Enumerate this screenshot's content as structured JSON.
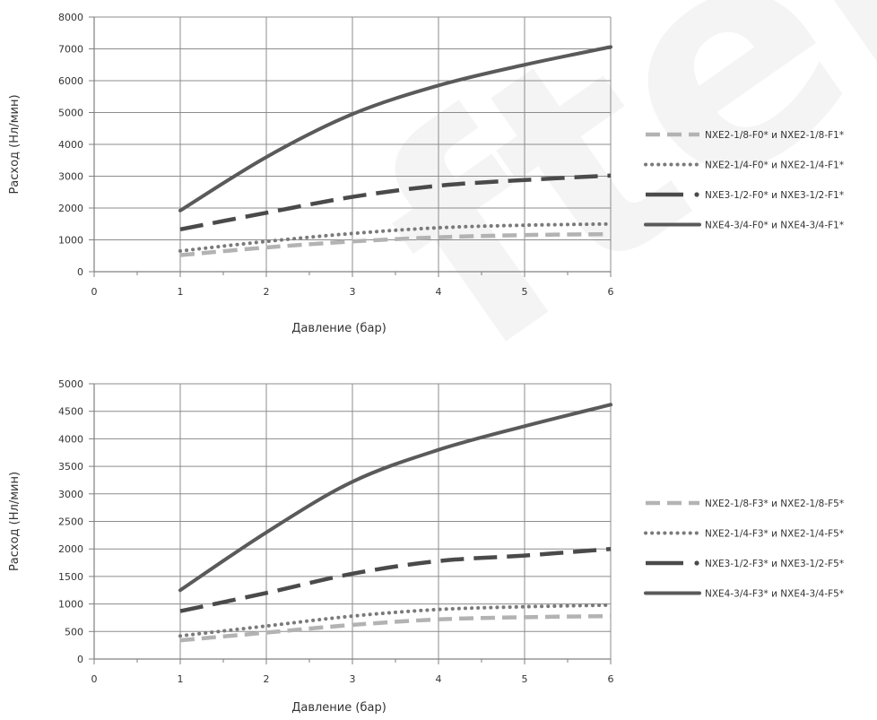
{
  "watermark": "fter.ru",
  "colors": {
    "axis": "#808080",
    "grid": "#8c8c8c",
    "text": "#333333"
  },
  "chart_data": [
    {
      "type": "line",
      "xlabel": "Давление (бар)",
      "ylabel": "Расход (Нл/мин)",
      "xlim": [
        0,
        6
      ],
      "ylim": [
        0,
        8000
      ],
      "xticks": [
        "0",
        "1",
        "2",
        "3",
        "4",
        "5",
        "6"
      ],
      "yticks": [
        "0",
        "1000",
        "2000",
        "3000",
        "4000",
        "5000",
        "6000",
        "7000",
        "8000"
      ],
      "grid": true,
      "legend_position": "right",
      "series": [
        {
          "name": "NXE2-1/8-F0* и NXE2-1/8-F1*",
          "style": "dashed-light",
          "color": "#b3b3b3",
          "x": [
            1,
            2,
            3,
            4,
            5,
            6
          ],
          "y": [
            520,
            760,
            950,
            1080,
            1150,
            1180
          ]
        },
        {
          "name": "NXE2-1/4-F0* и NXE2-1/4-F1*",
          "style": "dotted",
          "color": "#7a7a7a",
          "x": [
            1,
            2,
            3,
            4,
            5,
            6
          ],
          "y": [
            650,
            950,
            1200,
            1380,
            1460,
            1500
          ]
        },
        {
          "name": "NXE3-1/2-F0* и NXE3-1/2-F1*",
          "style": "dashed-dark",
          "color": "#4a4a4a",
          "x": [
            1,
            2,
            3,
            4,
            5,
            6
          ],
          "y": [
            1330,
            1850,
            2350,
            2700,
            2880,
            3020
          ]
        },
        {
          "name": "NXE4-3/4-F0* и NXE4-3/4-F1*",
          "style": "solid",
          "color": "#5a5a5a",
          "x": [
            1,
            2,
            3,
            4,
            5,
            6
          ],
          "y": [
            1920,
            3600,
            4950,
            5850,
            6500,
            7060
          ]
        }
      ]
    },
    {
      "type": "line",
      "xlabel": "Давление (бар)",
      "ylabel": "Расход (Нл/мин)",
      "xlim": [
        0,
        6
      ],
      "ylim": [
        0,
        5000
      ],
      "xticks": [
        "0",
        "1",
        "2",
        "3",
        "4",
        "5",
        "6"
      ],
      "yticks": [
        "0",
        "500",
        "1000",
        "1500",
        "2000",
        "2500",
        "3000",
        "3500",
        "4000",
        "4500",
        "5000"
      ],
      "grid": true,
      "legend_position": "right",
      "series": [
        {
          "name": "NXE2-1/8-F3* и NXE2-1/8-F5*",
          "style": "dashed-light",
          "color": "#b3b3b3",
          "x": [
            1,
            2,
            3,
            4,
            5,
            6
          ],
          "y": [
            340,
            480,
            620,
            720,
            760,
            780
          ]
        },
        {
          "name": "NXE2-1/4-F3* и NXE2-1/4-F5*",
          "style": "dotted",
          "color": "#7a7a7a",
          "x": [
            1,
            2,
            3,
            4,
            5,
            6
          ],
          "y": [
            420,
            600,
            780,
            900,
            950,
            980
          ]
        },
        {
          "name": "NXE3-1/2-F3* и NXE3-1/2-F5*",
          "style": "dashed-dark",
          "color": "#4a4a4a",
          "x": [
            1,
            2,
            3,
            4,
            5,
            6
          ],
          "y": [
            870,
            1200,
            1550,
            1780,
            1880,
            2000
          ]
        },
        {
          "name": "NXE4-3/4-F3* и NXE4-3/4-F5*",
          "style": "solid",
          "color": "#5a5a5a",
          "x": [
            1,
            2,
            3,
            4,
            5,
            6
          ],
          "y": [
            1250,
            2300,
            3220,
            3800,
            4230,
            4620
          ]
        }
      ]
    }
  ]
}
